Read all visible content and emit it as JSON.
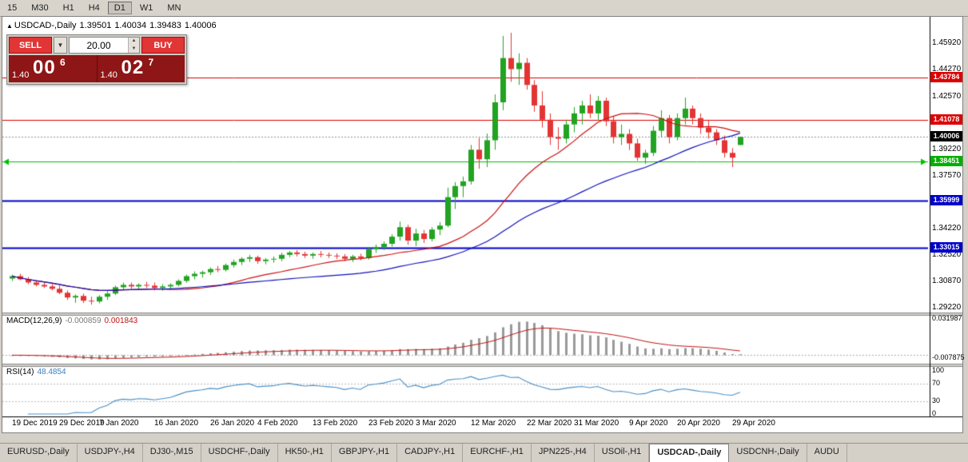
{
  "toolbar": {
    "timeframes": [
      "15",
      "M30",
      "H1",
      "H4",
      "D1",
      "W1",
      "MN"
    ],
    "active": "D1"
  },
  "chart_header": {
    "symbol": "USDCAD-,Daily",
    "open": "1.39501",
    "high": "1.40034",
    "low": "1.39483",
    "close": "1.40006"
  },
  "trade_panel": {
    "sell_label": "SELL",
    "buy_label": "BUY",
    "volume": "20.00",
    "bid": {
      "prefix": "1.40",
      "main": "00",
      "sup": "6"
    },
    "ask": {
      "prefix": "1.40",
      "main": "02",
      "sup": "7"
    }
  },
  "price_axis": {
    "labels": [
      "1.45920",
      "1.44270",
      "1.42570",
      "1.39220",
      "1.37570",
      "1.34220",
      "1.32520",
      "1.30870",
      "1.29220"
    ],
    "badges": [
      {
        "value": "1.43784",
        "color": "#dd0000"
      },
      {
        "value": "1.41078",
        "color": "#dd0000"
      },
      {
        "value": "1.40006",
        "color": "#000000"
      },
      {
        "value": "1.38451",
        "color": "#00b000"
      },
      {
        "value": "1.35999",
        "color": "#0000cc"
      },
      {
        "value": "1.33015",
        "color": "#0000cc"
      }
    ]
  },
  "indicators": {
    "macd": {
      "label": "MACD(12,26,9)",
      "value_main": "-0.000859",
      "value_signal": "0.001843",
      "axis_max": "0.031987",
      "axis_min": "-0.007875"
    },
    "rsi": {
      "label": "RSI(14)",
      "value": "48.4854",
      "axis": [
        "100",
        "70",
        "30",
        "0"
      ]
    }
  },
  "x_axis": {
    "ticks": [
      {
        "index": 0,
        "label": "19 Dec 2019"
      },
      {
        "index": 6,
        "label": "29 Dec 2019"
      },
      {
        "index": 11,
        "label": "7 Jan 2020"
      },
      {
        "index": 18,
        "label": "16 Jan 2020"
      },
      {
        "index": 25,
        "label": "26 Jan 2020"
      },
      {
        "index": 31,
        "label": "4 Feb 2020"
      },
      {
        "index": 38,
        "label": "13 Feb 2020"
      },
      {
        "index": 45,
        "label": "23 Feb 2020"
      },
      {
        "index": 51,
        "label": "3 Mar 2020"
      },
      {
        "index": 58,
        "label": "12 Mar 2020"
      },
      {
        "index": 65,
        "label": "22 Mar 2020"
      },
      {
        "index": 71,
        "label": "31 Mar 2020"
      },
      {
        "index": 78,
        "label": "9 Apr 2020"
      },
      {
        "index": 84,
        "label": "20 Apr 2020"
      },
      {
        "index": 91,
        "label": "29 Apr 2020"
      }
    ]
  },
  "tabs": {
    "active_index": 10,
    "items": [
      "EURUSD-,Daily",
      "USDJPY-,H4",
      "DJ30-,M15",
      "USDCHF-,Daily",
      "HK50-,H1",
      "GBPJPY-,H1",
      "CADJPY-,H1",
      "EURCHF-,H1",
      "JPN225-,H4",
      "USOil-,H1",
      "USDCAD-,Daily",
      "USDCNH-,Daily",
      "AUDU"
    ]
  },
  "chart_data": {
    "type": "candlestick",
    "symbol": "USDCAD",
    "timeframe": "Daily",
    "price_range": {
      "max": 1.466,
      "min": 1.289
    },
    "colors": {
      "bull": "#22a322",
      "bear": "#e33434",
      "ma_fast": "#cc1111",
      "ma_slow": "#1111bb",
      "macd_hist": "#9a9a9a",
      "macd_signal": "#c01414",
      "rsi_line": "#4a90c8",
      "level_red": "#dd0000",
      "level_green": "#00c000",
      "level_blue": "#0000cc"
    },
    "moving_averages": [
      {
        "name": "fast",
        "period": 20,
        "color": "#cc1111"
      },
      {
        "name": "slow",
        "period": 40,
        "color": "#1111bb"
      }
    ],
    "levels": [
      {
        "price": 1.43784,
        "color": "#dd0000",
        "width": 1,
        "arrows": false
      },
      {
        "price": 1.41078,
        "color": "#dd0000",
        "width": 1,
        "arrows": false
      },
      {
        "price": 1.38451,
        "color": "#00c000",
        "width": 1,
        "arrows": true
      },
      {
        "price": 1.35999,
        "color": "#0000cc",
        "width": 2,
        "arrows": false
      },
      {
        "price": 1.33015,
        "color": "#0000cc",
        "width": 2,
        "arrows": false
      }
    ],
    "current_price": 1.40006,
    "macd_params": {
      "fast": 12,
      "slow": 26,
      "signal": 9
    },
    "rsi_params": {
      "period": 14
    },
    "candles": [
      [
        "2019.12.19",
        1.3105,
        1.313,
        1.309,
        1.312
      ],
      [
        "2019.12.20",
        1.312,
        1.3135,
        1.3095,
        1.31
      ],
      [
        "2019.12.23",
        1.31,
        1.3115,
        1.307,
        1.308
      ],
      [
        "2019.12.24",
        1.308,
        1.309,
        1.3055,
        1.3065
      ],
      [
        "2019.12.26",
        1.3065,
        1.308,
        1.3045,
        1.3055
      ],
      [
        "2019.12.27",
        1.3055,
        1.307,
        1.303,
        1.304
      ],
      [
        "2019.12.30",
        1.304,
        1.306,
        1.3005,
        1.3015
      ],
      [
        "2019.12.31",
        1.3015,
        1.303,
        1.297,
        1.2985
      ],
      [
        "2020.01.02",
        1.2985,
        1.3005,
        1.2952,
        1.2995
      ],
      [
        "2020.01.03",
        1.2995,
        1.301,
        1.295,
        1.2965
      ],
      [
        "2020.01.06",
        1.2965,
        1.299,
        1.294,
        1.296
      ],
      [
        "2020.01.07",
        1.296,
        1.3,
        1.2948,
        1.299
      ],
      [
        "2020.01.08",
        1.299,
        1.3025,
        1.297,
        1.301
      ],
      [
        "2020.01.09",
        1.301,
        1.306,
        1.3,
        1.305
      ],
      [
        "2020.01.10",
        1.305,
        1.308,
        1.303,
        1.3065
      ],
      [
        "2020.01.13",
        1.3065,
        1.308,
        1.304,
        1.3055
      ],
      [
        "2020.01.14",
        1.3055,
        1.3075,
        1.3035,
        1.3065
      ],
      [
        "2020.01.15",
        1.3065,
        1.3085,
        1.3045,
        1.306
      ],
      [
        "2020.01.16",
        1.306,
        1.308,
        1.303,
        1.3045
      ],
      [
        "2020.01.17",
        1.3045,
        1.307,
        1.3028,
        1.3055
      ],
      [
        "2020.01.20",
        1.3055,
        1.3075,
        1.304,
        1.3065
      ],
      [
        "2020.01.21",
        1.3065,
        1.31,
        1.3055,
        1.309
      ],
      [
        "2020.01.22",
        1.309,
        1.313,
        1.3078,
        1.312
      ],
      [
        "2020.01.23",
        1.312,
        1.315,
        1.31,
        1.3135
      ],
      [
        "2020.01.24",
        1.3135,
        1.3155,
        1.311,
        1.3145
      ],
      [
        "2020.01.27",
        1.3145,
        1.3175,
        1.3128,
        1.3165
      ],
      [
        "2020.01.28",
        1.3165,
        1.3185,
        1.3145,
        1.316
      ],
      [
        "2020.01.29",
        1.316,
        1.32,
        1.315,
        1.319
      ],
      [
        "2020.01.30",
        1.319,
        1.3225,
        1.3175,
        1.321
      ],
      [
        "2020.01.31",
        1.321,
        1.324,
        1.319,
        1.323
      ],
      [
        "2020.02.03",
        1.323,
        1.3255,
        1.321,
        1.324
      ],
      [
        "2020.02.04",
        1.324,
        1.325,
        1.3198,
        1.3215
      ],
      [
        "2020.02.05",
        1.3215,
        1.3235,
        1.3195,
        1.3225
      ],
      [
        "2020.02.06",
        1.3225,
        1.3245,
        1.3205,
        1.323
      ],
      [
        "2020.02.07",
        1.323,
        1.3268,
        1.3215,
        1.3255
      ],
      [
        "2020.02.10",
        1.3255,
        1.328,
        1.324,
        1.327
      ],
      [
        "2020.02.11",
        1.327,
        1.3285,
        1.3245,
        1.326
      ],
      [
        "2020.02.12",
        1.326,
        1.3275,
        1.3235,
        1.325
      ],
      [
        "2020.02.13",
        1.325,
        1.327,
        1.323,
        1.326
      ],
      [
        "2020.02.14",
        1.326,
        1.328,
        1.3238,
        1.3255
      ],
      [
        "2020.02.17",
        1.3255,
        1.327,
        1.3235,
        1.325
      ],
      [
        "2020.02.18",
        1.325,
        1.3265,
        1.3228,
        1.3245
      ],
      [
        "2020.02.19",
        1.3245,
        1.326,
        1.3215,
        1.323
      ],
      [
        "2020.02.20",
        1.323,
        1.3255,
        1.321,
        1.3245
      ],
      [
        "2020.02.21",
        1.3245,
        1.3262,
        1.322,
        1.3235
      ],
      [
        "2020.02.24",
        1.3235,
        1.3305,
        1.3225,
        1.329
      ],
      [
        "2020.02.25",
        1.329,
        1.332,
        1.3268,
        1.3305
      ],
      [
        "2020.02.26",
        1.3305,
        1.334,
        1.3285,
        1.3325
      ],
      [
        "2020.02.27",
        1.3325,
        1.3385,
        1.3308,
        1.337
      ],
      [
        "2020.02.28",
        1.337,
        1.3465,
        1.3345,
        1.343
      ],
      [
        "2020.03.02",
        1.343,
        1.3445,
        1.3318,
        1.3345
      ],
      [
        "2020.03.03",
        1.3345,
        1.342,
        1.331,
        1.339
      ],
      [
        "2020.03.04",
        1.339,
        1.3412,
        1.333,
        1.3355
      ],
      [
        "2020.03.05",
        1.3355,
        1.343,
        1.334,
        1.3415
      ],
      [
        "2020.03.06",
        1.3415,
        1.3462,
        1.338,
        1.344
      ],
      [
        "2020.03.09",
        1.344,
        1.368,
        1.343,
        1.362
      ],
      [
        "2020.03.10",
        1.362,
        1.3715,
        1.3545,
        1.369
      ],
      [
        "2020.03.11",
        1.369,
        1.375,
        1.362,
        1.372
      ],
      [
        "2020.03.12",
        1.372,
        1.395,
        1.37,
        1.392
      ],
      [
        "2020.03.13",
        1.392,
        1.3995,
        1.38,
        1.386
      ],
      [
        "2020.03.16",
        1.386,
        1.4022,
        1.381,
        1.398
      ],
      [
        "2020.03.17",
        1.398,
        1.427,
        1.392,
        1.422
      ],
      [
        "2020.03.18",
        1.422,
        1.464,
        1.417,
        1.45
      ],
      [
        "2020.03.19",
        1.45,
        1.466,
        1.435,
        1.443
      ],
      [
        "2020.03.20",
        1.443,
        1.453,
        1.433,
        1.447
      ],
      [
        "2020.03.23",
        1.447,
        1.45,
        1.43,
        1.433
      ],
      [
        "2020.03.24",
        1.433,
        1.436,
        1.416,
        1.42
      ],
      [
        "2020.03.25",
        1.42,
        1.429,
        1.406,
        1.411
      ],
      [
        "2020.03.26",
        1.411,
        1.415,
        1.395,
        1.4
      ],
      [
        "2020.03.27",
        1.4,
        1.4062,
        1.392,
        1.399
      ],
      [
        "2020.03.30",
        1.399,
        1.411,
        1.396,
        1.408
      ],
      [
        "2020.03.31",
        1.408,
        1.419,
        1.403,
        1.415
      ],
      [
        "2020.04.01",
        1.415,
        1.423,
        1.408,
        1.42
      ],
      [
        "2020.04.02",
        1.42,
        1.427,
        1.412,
        1.415
      ],
      [
        "2020.04.03",
        1.415,
        1.426,
        1.411,
        1.423
      ],
      [
        "2020.04.06",
        1.423,
        1.425,
        1.407,
        1.41
      ],
      [
        "2020.04.07",
        1.41,
        1.413,
        1.396,
        1.4
      ],
      [
        "2020.04.08",
        1.4,
        1.408,
        1.395,
        1.402
      ],
      [
        "2020.04.09",
        1.402,
        1.405,
        1.3918,
        1.396
      ],
      [
        "2020.04.13",
        1.396,
        1.399,
        1.385,
        1.387
      ],
      [
        "2020.04.14",
        1.387,
        1.392,
        1.383,
        1.39
      ],
      [
        "2020.04.15",
        1.39,
        1.407,
        1.388,
        1.404
      ],
      [
        "2020.04.16",
        1.404,
        1.417,
        1.4,
        1.412
      ],
      [
        "2020.04.17",
        1.412,
        1.414,
        1.396,
        1.4
      ],
      [
        "2020.04.20",
        1.4,
        1.415,
        1.398,
        1.412
      ],
      [
        "2020.04.21",
        1.412,
        1.425,
        1.408,
        1.418
      ],
      [
        "2020.04.22",
        1.418,
        1.42,
        1.408,
        1.412
      ],
      [
        "2020.04.23",
        1.412,
        1.415,
        1.402,
        1.406
      ],
      [
        "2020.04.24",
        1.406,
        1.411,
        1.399,
        1.403
      ],
      [
        "2020.04.27",
        1.403,
        1.405,
        1.395,
        1.398
      ],
      [
        "2020.04.28",
        1.398,
        1.401,
        1.387,
        1.39
      ],
      [
        "2020.04.29",
        1.39,
        1.393,
        1.381,
        1.387
      ],
      [
        "2020.04.30",
        1.39501,
        1.40034,
        1.39483,
        1.40006
      ]
    ]
  }
}
